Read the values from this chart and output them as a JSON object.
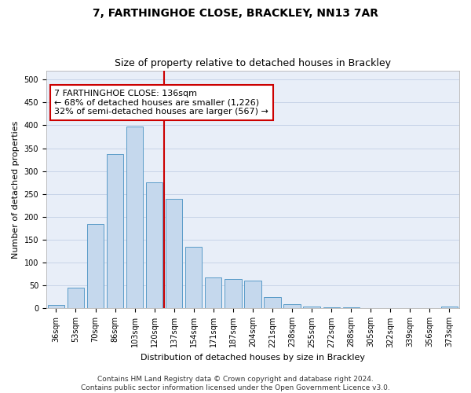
{
  "title": "7, FARTHINGHOE CLOSE, BRACKLEY, NN13 7AR",
  "subtitle": "Size of property relative to detached houses in Brackley",
  "xlabel": "Distribution of detached houses by size in Brackley",
  "ylabel": "Number of detached properties",
  "categories": [
    "36sqm",
    "53sqm",
    "70sqm",
    "86sqm",
    "103sqm",
    "120sqm",
    "137sqm",
    "154sqm",
    "171sqm",
    "187sqm",
    "204sqm",
    "221sqm",
    "238sqm",
    "255sqm",
    "272sqm",
    "288sqm",
    "305sqm",
    "322sqm",
    "339sqm",
    "356sqm",
    "373sqm"
  ],
  "values": [
    8,
    45,
    185,
    338,
    398,
    275,
    240,
    135,
    68,
    65,
    60,
    25,
    10,
    5,
    3,
    2,
    1,
    1,
    1,
    1,
    4
  ],
  "bar_color": "#c5d8ed",
  "bar_edge_color": "#5a9bc8",
  "grid_color": "#c8d4e8",
  "background_color": "#e8eef8",
  "vline_color": "#cc0000",
  "annotation_text": "7 FARTHINGHOE CLOSE: 136sqm\n← 68% of detached houses are smaller (1,226)\n32% of semi-detached houses are larger (567) →",
  "annotation_box_color": "#cc0000",
  "ylim": [
    0,
    520
  ],
  "yticks": [
    0,
    50,
    100,
    150,
    200,
    250,
    300,
    350,
    400,
    450,
    500
  ],
  "footer": "Contains HM Land Registry data © Crown copyright and database right 2024.\nContains public sector information licensed under the Open Government Licence v3.0.",
  "title_fontsize": 10,
  "subtitle_fontsize": 9,
  "xlabel_fontsize": 8,
  "ylabel_fontsize": 8,
  "tick_fontsize": 7,
  "annotation_fontsize": 8,
  "footer_fontsize": 6.5
}
